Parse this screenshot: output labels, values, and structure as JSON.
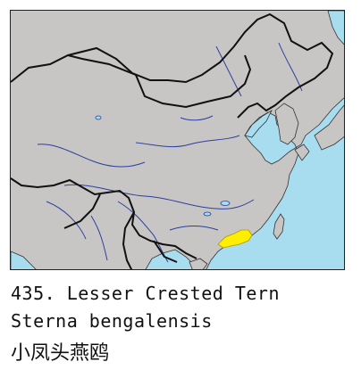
{
  "species": {
    "number_name": "435. Lesser Crested Tern",
    "scientific_name": "Sterna bengalensis",
    "chinese_name": "小凤头燕鸥"
  },
  "colors": {
    "land": "#c8c6c4",
    "sea": "#a8dcef",
    "border": "#111111",
    "river": "#2b3fa0",
    "range": "#ffee00"
  }
}
